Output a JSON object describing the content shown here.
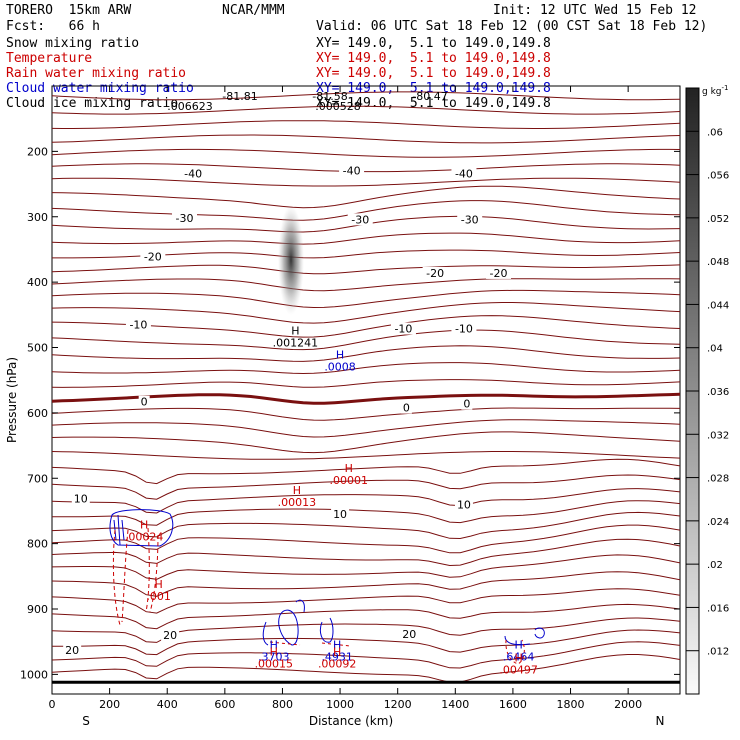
{
  "header": {
    "model": "TORERO  15km ARW",
    "org": "NCAR/MMM",
    "init": "Init: 12 UTC Wed 15 Feb 12",
    "fcst": "Fcst:   66 h",
    "valid": "Valid: 06 UTC Sat 18 Feb 12 (00 CST Sat 18 Feb 12)"
  },
  "legend": [
    {
      "label": "Snow mixing ratio",
      "color": "#000000",
      "xy": "XY= 149.0,  5.1 to 149.0,149.8"
    },
    {
      "label": "Temperature",
      "color": "#cc0000",
      "xy": "XY= 149.0,  5.1 to 149.0,149.8"
    },
    {
      "label": "Rain water mixing ratio",
      "color": "#cc0000",
      "xy": "XY= 149.0,  5.1 to 149.0,149.8"
    },
    {
      "label": "Cloud water mixing ratio",
      "color": "#0000cc",
      "xy": "XY= 149.0,  5.1 to 149.0,149.8"
    },
    {
      "label": "Cloud ice mixing ratio",
      "color": "#000000",
      "xy": "XY= 149.0,  5.1 to 149.0,149.8"
    }
  ],
  "colorbar": {
    "unit": "g kg",
    "unit_exp": "-1",
    "ticks": [
      ".06",
      ".056",
      ".052",
      ".048",
      ".044",
      ".04",
      ".036",
      ".032",
      ".028",
      ".024",
      ".02",
      ".016",
      ".012"
    ],
    "tick_values": [
      0.06,
      0.056,
      0.052,
      0.048,
      0.044,
      0.04,
      0.036,
      0.032,
      0.028,
      0.024,
      0.02,
      0.016,
      0.012
    ],
    "range": [
      0.008,
      0.064
    ]
  },
  "chart_data": {
    "type": "contour-cross-section",
    "xlabel": "Distance (km)",
    "ylabel": "Pressure (hPa)",
    "xlim": [
      0,
      2180
    ],
    "ylim": [
      100,
      1030
    ],
    "x_ticks": [
      0,
      200,
      400,
      600,
      800,
      1000,
      1200,
      1400,
      1600,
      1800,
      2000
    ],
    "y_ticks": [
      200,
      300,
      400,
      500,
      600,
      700,
      800,
      900,
      1000
    ],
    "x_end_labels": {
      "left": "S",
      "right": "N"
    },
    "top_labels": [
      "-81.81",
      "-81.58",
      "-80.47"
    ],
    "temperature_labels": [
      {
        "text": "-40",
        "x": 490,
        "p": 237
      },
      {
        "text": "-40",
        "x": 1040,
        "p": 232
      },
      {
        "text": "-40",
        "x": 1430,
        "p": 237
      },
      {
        "text": "-30",
        "x": 460,
        "p": 305
      },
      {
        "text": "-30",
        "x": 1070,
        "p": 307
      },
      {
        "text": "-30",
        "x": 1450,
        "p": 307
      },
      {
        "text": "-20",
        "x": 350,
        "p": 364
      },
      {
        "text": "-20",
        "x": 1330,
        "p": 389
      },
      {
        "text": "-20",
        "x": 1550,
        "p": 389
      },
      {
        "text": "-10",
        "x": 300,
        "p": 468
      },
      {
        "text": "-10",
        "x": 1220,
        "p": 474
      },
      {
        "text": "-10",
        "x": 1430,
        "p": 474
      },
      {
        "text": "0",
        "x": 320,
        "p": 586
      },
      {
        "text": "0",
        "x": 1230,
        "p": 595
      },
      {
        "text": "0",
        "x": 1440,
        "p": 589
      },
      {
        "text": "10",
        "x": 100,
        "p": 734
      },
      {
        "text": "10",
        "x": 1000,
        "p": 758
      },
      {
        "text": "10",
        "x": 1430,
        "p": 743
      },
      {
        "text": "20",
        "x": 70,
        "p": 966
      },
      {
        "text": "20",
        "x": 410,
        "p": 943
      },
      {
        "text": "20",
        "x": 1240,
        "p": 941
      }
    ],
    "maxima": [
      {
        "text": ".001241",
        "x": 845,
        "p": 497,
        "color": "#000000"
      },
      {
        "text": ".0008",
        "x": 1000,
        "p": 534,
        "color": "#0000cc"
      },
      {
        "text": ".00001",
        "x": 1030,
        "p": 707,
        "color": "#cc0000"
      },
      {
        "text": ".00013",
        "x": 850,
        "p": 741,
        "color": "#cc0000"
      },
      {
        "text": ".00024",
        "x": 320,
        "p": 794,
        "color": "#cc0000"
      },
      {
        "text": ".001",
        "x": 370,
        "p": 885,
        "color": "#cc0000"
      },
      {
        "text": ".3703",
        "x": 770,
        "p": 977,
        "color": "#0000cc"
      },
      {
        "text": ".00015",
        "x": 770,
        "p": 988,
        "color": "#cc0000"
      },
      {
        "text": ".4931",
        "x": 990,
        "p": 977,
        "color": "#0000cc"
      },
      {
        "text": ".00092",
        "x": 990,
        "p": 988,
        "color": "#cc0000"
      },
      {
        "text": ".6464",
        "x": 1620,
        "p": 977,
        "color": "#0000cc"
      },
      {
        "text": ".00497",
        "x": 1620,
        "p": 997,
        "color": "#cc0000"
      }
    ],
    "top_snow_label": ".006623",
    "top_ice_label": ".000528"
  }
}
